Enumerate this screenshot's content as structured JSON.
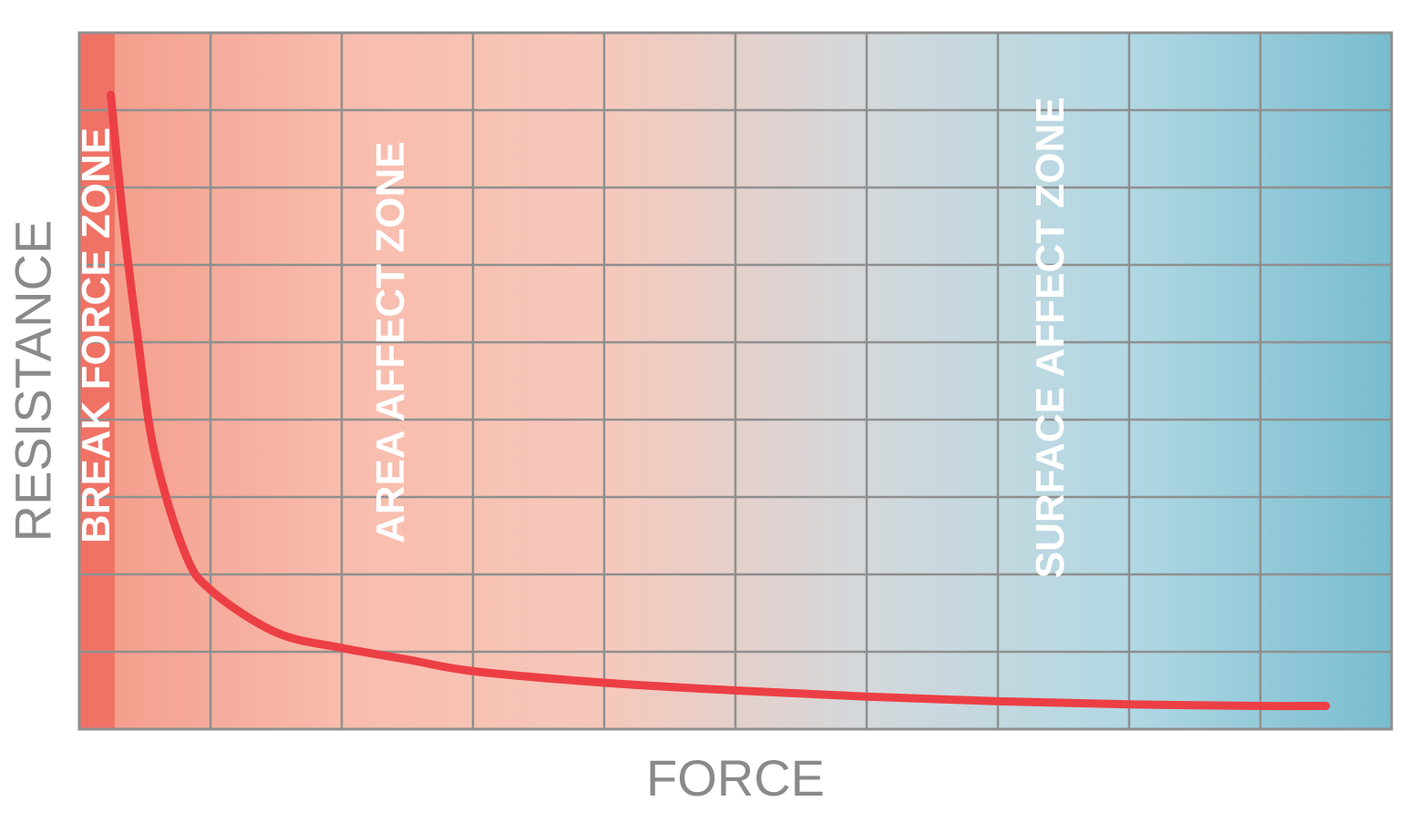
{
  "chart_data": {
    "type": "line",
    "title": "",
    "xlabel": "FORCE",
    "ylabel": "RESISTANCE",
    "grid": true,
    "xlim": [
      0,
      10
    ],
    "ylim": [
      0,
      9
    ],
    "annotations": [
      {
        "text": "BREAK FORCE ZONE",
        "x": 0.13,
        "y_bottom": 2.4,
        "orientation": "vertical"
      },
      {
        "text": "AREA AFFECT ZONE",
        "x": 2.37,
        "y_bottom": 2.4,
        "orientation": "vertical"
      },
      {
        "text": "SURFACE AFFECT ZONE",
        "x": 7.4,
        "y_bottom": 1.95,
        "orientation": "vertical"
      }
    ],
    "zones": [
      {
        "name": "BREAK FORCE ZONE",
        "x_start": 0,
        "x_end": 0.27,
        "color": "#f07265"
      },
      {
        "name": "AREA AFFECT ZONE",
        "x_start": 0.27,
        "x_end": 4.0,
        "color": "#f7b4a4"
      },
      {
        "name": "SURFACE AFFECT ZONE",
        "x_start": 6.0,
        "x_end": 10,
        "color": "#9ecfdf"
      }
    ],
    "gradient": [
      "#f49a88",
      "#f8bcad",
      "#f6c8bb",
      "#d3d8db",
      "#b1d8e4",
      "#78bccf"
    ],
    "series": [
      {
        "color": "#ec3f45",
        "x": [
          0.24,
          0.34,
          0.45,
          0.57,
          0.8,
          1.0,
          1.5,
          2.0,
          2.5,
          3.0,
          4.0,
          5.0,
          6.0,
          7.0,
          8.0,
          9.0,
          9.5
        ],
        "y": [
          8.2,
          6.5,
          5.0,
          3.6,
          2.3,
          1.8,
          1.25,
          1.05,
          0.9,
          0.75,
          0.6,
          0.5,
          0.42,
          0.36,
          0.32,
          0.3,
          0.3
        ]
      }
    ]
  }
}
